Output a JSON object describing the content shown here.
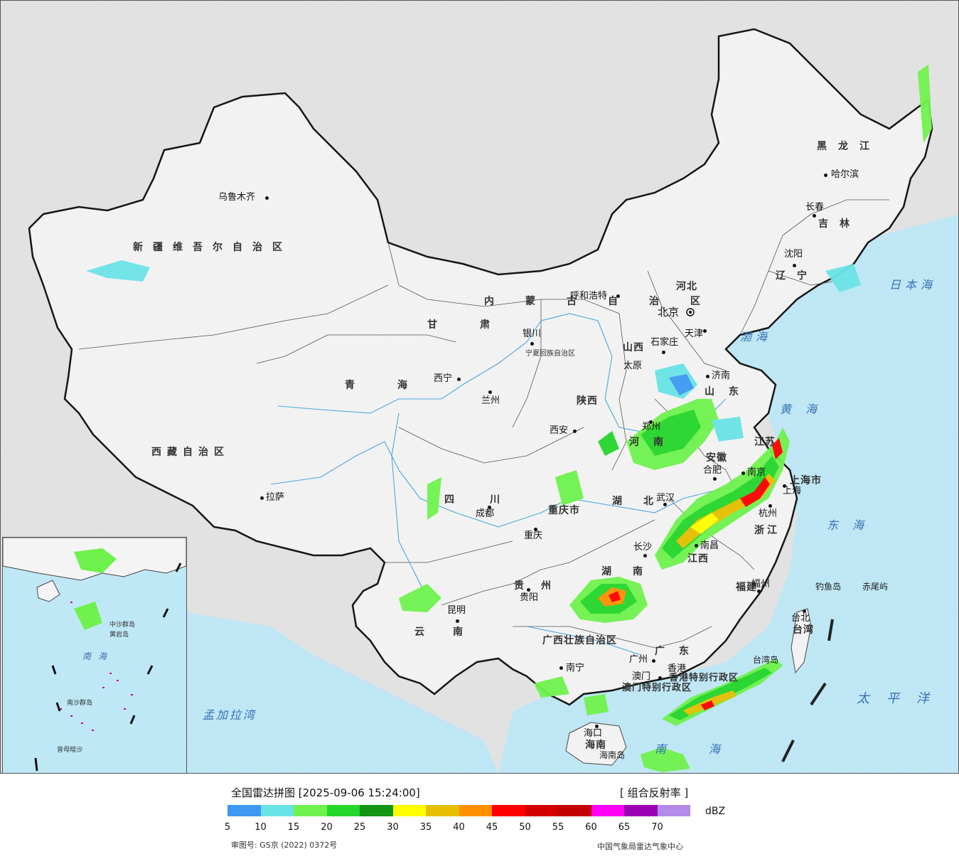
{
  "cities": [
    {
      "name": "乌鲁木齐",
      "key": "urumqi"
    },
    {
      "name": "拉萨",
      "key": "lhasa"
    },
    {
      "name": "西宁",
      "key": "xining"
    },
    {
      "name": "兰州",
      "key": "lanzhou"
    },
    {
      "name": "银川",
      "key": "yinchuan"
    },
    {
      "name": "呼和浩特",
      "key": "hohhot"
    },
    {
      "name": "北京",
      "key": "beijing"
    },
    {
      "name": "天津",
      "key": "tianjin"
    },
    {
      "name": "石家庄",
      "key": "shijiazhuang"
    },
    {
      "name": "太原",
      "key": "taiyuan"
    },
    {
      "name": "济南",
      "key": "jinan"
    },
    {
      "name": "郑州",
      "key": "zhengzhou"
    },
    {
      "name": "西安",
      "key": "xian"
    },
    {
      "name": "成都",
      "key": "chengdu"
    },
    {
      "name": "重庆",
      "key": "chongqing"
    },
    {
      "name": "武汉",
      "key": "wuhan"
    },
    {
      "name": "合肥",
      "key": "hefei"
    },
    {
      "name": "南京",
      "key": "nanjing"
    },
    {
      "name": "上海",
      "key": "shanghai"
    },
    {
      "name": "杭州",
      "key": "hangzhou"
    },
    {
      "name": "长沙",
      "key": "changsha"
    },
    {
      "name": "南昌",
      "key": "nanchang"
    },
    {
      "name": "福州",
      "key": "fuzhou"
    },
    {
      "name": "台北",
      "key": "taipei"
    },
    {
      "name": "贵阳",
      "key": "guiyang"
    },
    {
      "name": "昆明",
      "key": "kunming"
    },
    {
      "name": "南宁",
      "key": "nanning"
    },
    {
      "name": "广州",
      "key": "guangzhou"
    },
    {
      "name": "香港",
      "key": "hongkong"
    },
    {
      "name": "澳门",
      "key": "macau"
    },
    {
      "name": "海口",
      "key": "haikou"
    },
    {
      "name": "哈尔滨",
      "key": "harbin"
    },
    {
      "name": "长春",
      "key": "changchun"
    },
    {
      "name": "沈阳",
      "key": "shenyang"
    }
  ],
  "provinces": [
    {
      "name": "新疆维吾尔自治区"
    },
    {
      "name": "西藏自治区"
    },
    {
      "name": "青海"
    },
    {
      "name": "甘肃"
    },
    {
      "name": "四川"
    },
    {
      "name": "云南"
    },
    {
      "name": "贵州"
    },
    {
      "name": "广西壮族自治区"
    },
    {
      "name": "广东"
    },
    {
      "name": "湖南"
    },
    {
      "name": "湖北"
    },
    {
      "name": "江西"
    },
    {
      "name": "福建"
    },
    {
      "name": "浙江"
    },
    {
      "name": "安徽"
    },
    {
      "name": "江苏"
    },
    {
      "name": "山东"
    },
    {
      "name": "河南"
    },
    {
      "name": "河北"
    },
    {
      "name": "山西"
    },
    {
      "name": "陕西"
    },
    {
      "name": "内蒙古自治区"
    },
    {
      "name": "黑龙江"
    },
    {
      "name": "吉林"
    },
    {
      "name": "辽宁"
    },
    {
      "name": "台湾"
    },
    {
      "name": "海南"
    },
    {
      "name": "重庆市"
    },
    {
      "name": "上海市"
    },
    {
      "name": "宁夏回族自治区"
    },
    {
      "name": "香港特别行政区"
    },
    {
      "name": "澳门特别行政区"
    },
    {
      "name": "海南岛"
    },
    {
      "name": "台湾岛"
    }
  ],
  "seas": {
    "japan_sea": "日本海",
    "bohai": "渤海",
    "yellow_sea": "黄海",
    "east_sea": "东海",
    "pacific": "太平洋",
    "bengal": "孟加拉湾",
    "south_sea": "南海",
    "diaoyu": "钓鱼岛",
    "chiwei": "赤尾屿"
  },
  "inset": {
    "south_sea_label": "南海",
    "nansha": "南沙群岛",
    "zhongsha": "中沙群岛",
    "huangyan": "黄岩岛",
    "zengmu": "曾母暗沙"
  },
  "legend": {
    "title": "全国雷达拼图 [2025-09-06 15:24:00]",
    "product": "[ 组合反射率 ]",
    "unit": "dBZ",
    "colors": [
      "#3d99f2",
      "#6ae3e6",
      "#6ff24d",
      "#25d62a",
      "#129414",
      "#ffff00",
      "#e6bf00",
      "#ff9100",
      "#ff0000",
      "#d40000",
      "#c20000",
      "#ff00f5",
      "#9a00b4",
      "#b38ae9"
    ],
    "ticks": [
      "5",
      "10",
      "15",
      "20",
      "25",
      "30",
      "35",
      "40",
      "45",
      "50",
      "55",
      "60",
      "65",
      "70"
    ],
    "approval": "审图号: GS京 (2022) 0372号",
    "source": "中国气象局雷达气象中心"
  },
  "colors": {
    "ocean": "#bfe8f6",
    "land_outside": "#e3e3e3",
    "china_land": "#f4f4f4",
    "border": "#111111",
    "river": "#4aa8e0"
  }
}
